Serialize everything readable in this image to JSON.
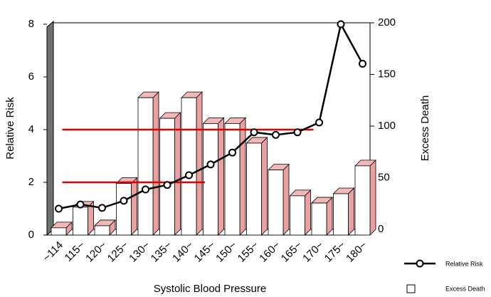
{
  "chart_data": {
    "type": "bar-line",
    "x_label": "Systolic Blood Pressure",
    "y_label": "Relative Risk",
    "y2_label": "Excess Death",
    "categories": [
      "~114",
      "115~",
      "120~",
      "125~",
      "130~",
      "135~",
      "140~",
      "145~",
      "150~",
      "155~",
      "160~",
      "165~",
      "170~",
      "175~",
      "180~"
    ],
    "ylim": [
      0,
      8
    ],
    "yticks": [
      0,
      2,
      4,
      6,
      8
    ],
    "y2lim": [
      0,
      200
    ],
    "y2ticks": [
      0,
      50,
      100,
      150,
      200
    ],
    "series": [
      {
        "name": "Relative Risk",
        "type": "line",
        "color": "#000000",
        "values": [
          1.0,
          1.16,
          1.03,
          1.3,
          1.73,
          1.9,
          2.27,
          2.68,
          3.13,
          3.9,
          3.8,
          3.9,
          4.27,
          8.0,
          6.5
        ]
      },
      {
        "name": "Excess Death",
        "type": "bar",
        "axis": "y2",
        "color": "#ffffff",
        "values": [
          7,
          27,
          9,
          50,
          133,
          113,
          133,
          108,
          108,
          89,
          63,
          38,
          31,
          40,
          67
        ]
      }
    ],
    "reference_lines": [
      {
        "value": 4,
        "from": "~114",
        "to": "170~",
        "color": "#e00000"
      },
      {
        "value": 2,
        "from": "~114",
        "to": "145~",
        "color": "#e00000"
      }
    ]
  }
}
